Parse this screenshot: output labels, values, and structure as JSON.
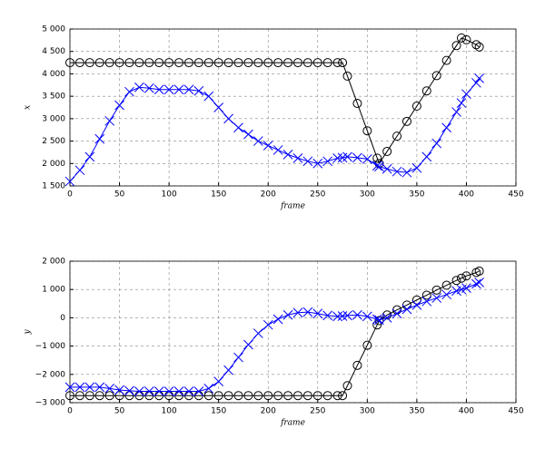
{
  "chart_data": [
    {
      "type": "line",
      "ylabel": "x",
      "xlabel": "frame",
      "grid": true,
      "x": [
        0,
        10,
        20,
        30,
        40,
        50,
        60,
        70,
        80,
        90,
        100,
        110,
        120,
        130,
        140,
        150,
        160,
        170,
        180,
        190,
        200,
        210,
        220,
        230,
        240,
        250,
        260,
        270,
        275,
        280,
        290,
        300,
        310,
        312,
        320,
        330,
        340,
        350,
        360,
        370,
        380,
        390,
        395,
        400,
        410,
        413
      ],
      "xlim": [
        0,
        450
      ],
      "xticks": [
        0,
        50,
        100,
        150,
        200,
        250,
        300,
        350,
        400,
        450
      ],
      "ylim": [
        1500,
        5000
      ],
      "yticks": [
        {
          "value": 1500,
          "label": "1 500"
        },
        {
          "value": 2000,
          "label": "2 000"
        },
        {
          "value": 2500,
          "label": "2 500"
        },
        {
          "value": 3000,
          "label": "3 000"
        },
        {
          "value": 3500,
          "label": "3 500"
        },
        {
          "value": 4000,
          "label": "4 000"
        },
        {
          "value": 4500,
          "label": "4 500"
        },
        {
          "value": 5000,
          "label": "5 000"
        }
      ],
      "series": [
        {
          "color": "#000000",
          "marker": "circle",
          "values": [
            4250,
            4250,
            4250,
            4250,
            4250,
            4250,
            4250,
            4250,
            4250,
            4250,
            4250,
            4250,
            4250,
            4250,
            4250,
            4250,
            4250,
            4250,
            4250,
            4250,
            4250,
            4250,
            4250,
            4250,
            4250,
            4250,
            4250,
            4250,
            4250,
            3950,
            3340,
            2730,
            2120,
            2000,
            2270,
            2610,
            2940,
            3280,
            3620,
            3960,
            4300,
            4630,
            4800,
            4760,
            4650,
            4600
          ]
        },
        {
          "color": "#0000ff",
          "marker": "x",
          "values": [
            1600,
            1850,
            2150,
            2550,
            2950,
            3300,
            3600,
            3700,
            3680,
            3650,
            3650,
            3650,
            3650,
            3620,
            3500,
            3250,
            3000,
            2800,
            2650,
            2500,
            2400,
            2300,
            2200,
            2120,
            2050,
            2000,
            2050,
            2120,
            2130,
            2150,
            2130,
            2100,
            1950,
            1930,
            1880,
            1820,
            1800,
            1900,
            2150,
            2450,
            2800,
            3150,
            3350,
            3550,
            3800,
            3900
          ]
        }
      ]
    },
    {
      "type": "line",
      "ylabel": "y",
      "xlabel": "frame",
      "grid": true,
      "x": [
        0,
        10,
        20,
        30,
        40,
        50,
        60,
        70,
        80,
        90,
        100,
        110,
        120,
        130,
        140,
        150,
        160,
        170,
        180,
        190,
        200,
        210,
        220,
        230,
        240,
        250,
        260,
        270,
        275,
        280,
        290,
        300,
        310,
        312,
        320,
        330,
        340,
        350,
        360,
        370,
        380,
        390,
        395,
        400,
        410,
        413
      ],
      "xlim": [
        0,
        450
      ],
      "xticks": [
        0,
        50,
        100,
        150,
        200,
        250,
        300,
        350,
        400,
        450
      ],
      "ylim": [
        -3000,
        2000
      ],
      "yticks": [
        {
          "value": -3000,
          "label": "−3 000"
        },
        {
          "value": -2000,
          "label": "−2 000"
        },
        {
          "value": -1000,
          "label": "−1 000"
        },
        0,
        {
          "value": 1000,
          "label": "1 000"
        },
        {
          "value": 2000,
          "label": "2 000"
        }
      ],
      "series": [
        {
          "color": "#000000",
          "marker": "circle",
          "values": [
            -2750,
            -2750,
            -2750,
            -2750,
            -2750,
            -2750,
            -2750,
            -2750,
            -2750,
            -2750,
            -2750,
            -2750,
            -2750,
            -2750,
            -2750,
            -2750,
            -2750,
            -2750,
            -2750,
            -2750,
            -2750,
            -2750,
            -2750,
            -2750,
            -2750,
            -2750,
            -2750,
            -2750,
            -2750,
            -2400,
            -1680,
            -970,
            -250,
            -100,
            100,
            280,
            450,
            630,
            800,
            980,
            1150,
            1320,
            1400,
            1480,
            1600,
            1650
          ]
        },
        {
          "color": "#0000ff",
          "marker": "x",
          "values": [
            -2450,
            -2450,
            -2450,
            -2450,
            -2500,
            -2550,
            -2580,
            -2600,
            -2600,
            -2600,
            -2600,
            -2600,
            -2600,
            -2600,
            -2500,
            -2250,
            -1850,
            -1400,
            -950,
            -550,
            -250,
            -50,
            100,
            180,
            200,
            150,
            80,
            50,
            60,
            80,
            100,
            50,
            -50,
            -80,
            0,
            150,
            300,
            450,
            580,
            700,
            820,
            950,
            1000,
            1050,
            1200,
            1250
          ]
        }
      ]
    }
  ]
}
